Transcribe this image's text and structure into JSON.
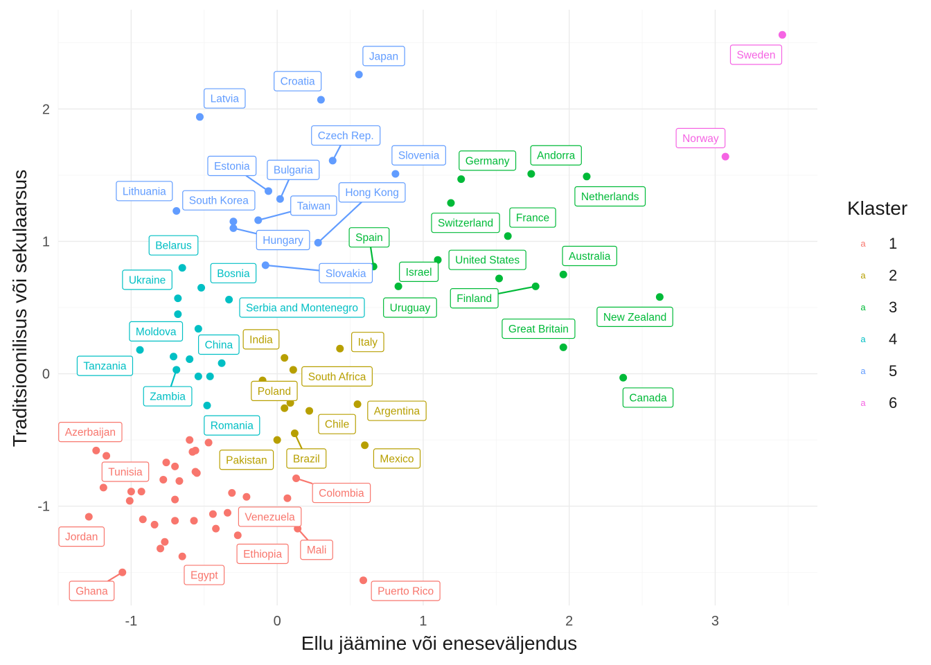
{
  "chart_data": {
    "type": "scatter",
    "xlabel": "Ellu jäämine või eneseväljendus",
    "ylabel": "Traditsioonilisus või sekulaarsus",
    "xlim": [
      -1.5,
      3.7
    ],
    "ylim": [
      -1.75,
      2.75
    ],
    "x_ticks": [
      -1,
      0,
      1,
      2,
      3
    ],
    "y_ticks": [
      -1,
      0,
      1,
      2
    ],
    "grid": true,
    "legend": {
      "title": "Klaster",
      "position": "right",
      "key_glyph": "a",
      "entries": [
        {
          "label": "1",
          "color": "#F8766D"
        },
        {
          "label": "2",
          "color": "#B79F00"
        },
        {
          "label": "3",
          "color": "#00BA38"
        },
        {
          "label": "4",
          "color": "#00BFC4"
        },
        {
          "label": "5",
          "color": "#619CFF"
        },
        {
          "label": "6",
          "color": "#F564E3"
        }
      ]
    },
    "points": [
      {
        "x": 0.56,
        "y": 2.26,
        "cluster": "5"
      },
      {
        "x": 0.3,
        "y": 2.07,
        "cluster": "5"
      },
      {
        "x": -0.53,
        "y": 1.94,
        "cluster": "5"
      },
      {
        "x": 0.38,
        "y": 1.61,
        "cluster": "5"
      },
      {
        "x": 0.81,
        "y": 1.51,
        "cluster": "5"
      },
      {
        "x": -0.06,
        "y": 1.38,
        "cluster": "5"
      },
      {
        "x": 0.02,
        "y": 1.32,
        "cluster": "5"
      },
      {
        "x": -0.69,
        "y": 1.23,
        "cluster": "5"
      },
      {
        "x": -0.3,
        "y": 1.15,
        "cluster": "5"
      },
      {
        "x": -0.3,
        "y": 1.1,
        "cluster": "5"
      },
      {
        "x": -0.13,
        "y": 1.16,
        "cluster": "5"
      },
      {
        "x": 0.28,
        "y": 0.99,
        "cluster": "5"
      },
      {
        "x": -0.08,
        "y": 0.82,
        "cluster": "5"
      },
      {
        "x": 1.26,
        "y": 1.47,
        "cluster": "3"
      },
      {
        "x": 1.74,
        "y": 1.51,
        "cluster": "3"
      },
      {
        "x": 2.12,
        "y": 1.49,
        "cluster": "3"
      },
      {
        "x": 1.19,
        "y": 1.29,
        "cluster": "3"
      },
      {
        "x": 1.58,
        "y": 1.04,
        "cluster": "3"
      },
      {
        "x": 0.66,
        "y": 0.81,
        "cluster": "3"
      },
      {
        "x": 1.1,
        "y": 0.86,
        "cluster": "3"
      },
      {
        "x": 1.52,
        "y": 0.72,
        "cluster": "3"
      },
      {
        "x": 1.96,
        "y": 0.75,
        "cluster": "3"
      },
      {
        "x": 0.83,
        "y": 0.66,
        "cluster": "3"
      },
      {
        "x": 1.77,
        "y": 0.66,
        "cluster": "3"
      },
      {
        "x": 2.62,
        "y": 0.58,
        "cluster": "3"
      },
      {
        "x": 1.96,
        "y": 0.2,
        "cluster": "3"
      },
      {
        "x": 2.37,
        "y": -0.03,
        "cluster": "3"
      },
      {
        "x": 3.46,
        "y": 2.56,
        "cluster": "6"
      },
      {
        "x": 3.07,
        "y": 1.64,
        "cluster": "6"
      },
      {
        "x": -0.65,
        "y": 0.8,
        "cluster": "4"
      },
      {
        "x": -0.52,
        "y": 0.65,
        "cluster": "4"
      },
      {
        "x": -0.68,
        "y": 0.57,
        "cluster": "4"
      },
      {
        "x": -0.33,
        "y": 0.56,
        "cluster": "4"
      },
      {
        "x": -0.68,
        "y": 0.45,
        "cluster": "4"
      },
      {
        "x": -0.54,
        "y": 0.34,
        "cluster": "4"
      },
      {
        "x": -0.94,
        "y": 0.18,
        "cluster": "4"
      },
      {
        "x": -0.71,
        "y": 0.13,
        "cluster": "4"
      },
      {
        "x": -0.6,
        "y": 0.11,
        "cluster": "4"
      },
      {
        "x": -0.38,
        "y": 0.08,
        "cluster": "4"
      },
      {
        "x": -0.69,
        "y": 0.03,
        "cluster": "4"
      },
      {
        "x": -0.54,
        "y": -0.02,
        "cluster": "4"
      },
      {
        "x": -0.46,
        "y": -0.02,
        "cluster": "4"
      },
      {
        "x": -0.48,
        "y": -0.24,
        "cluster": "4"
      },
      {
        "x": 0.43,
        "y": 0.19,
        "cluster": "2"
      },
      {
        "x": 0.05,
        "y": 0.12,
        "cluster": "2"
      },
      {
        "x": 0.11,
        "y": 0.03,
        "cluster": "2"
      },
      {
        "x": -0.1,
        "y": -0.05,
        "cluster": "2"
      },
      {
        "x": 0.09,
        "y": -0.22,
        "cluster": "2"
      },
      {
        "x": 0.05,
        "y": -0.26,
        "cluster": "2"
      },
      {
        "x": 0.22,
        "y": -0.28,
        "cluster": "2"
      },
      {
        "x": 0.55,
        "y": -0.23,
        "cluster": "2"
      },
      {
        "x": 0.12,
        "y": -0.45,
        "cluster": "2"
      },
      {
        "x": 0.0,
        "y": -0.5,
        "cluster": "2"
      },
      {
        "x": 0.6,
        "y": -0.54,
        "cluster": "2"
      },
      {
        "x": -1.24,
        "y": -0.58,
        "cluster": "1"
      },
      {
        "x": -1.17,
        "y": -0.62,
        "cluster": "1"
      },
      {
        "x": -0.6,
        "y": -0.5,
        "cluster": "1"
      },
      {
        "x": -0.47,
        "y": -0.52,
        "cluster": "1"
      },
      {
        "x": -0.58,
        "y": -0.59,
        "cluster": "1"
      },
      {
        "x": -0.56,
        "y": -0.58,
        "cluster": "1"
      },
      {
        "x": -0.76,
        "y": -0.67,
        "cluster": "1"
      },
      {
        "x": -0.7,
        "y": -0.7,
        "cluster": "1"
      },
      {
        "x": -0.91,
        "y": -0.72,
        "cluster": "1"
      },
      {
        "x": -0.56,
        "y": -0.74,
        "cluster": "1"
      },
      {
        "x": -0.55,
        "y": -0.75,
        "cluster": "1"
      },
      {
        "x": -0.78,
        "y": -0.8,
        "cluster": "1"
      },
      {
        "x": -0.67,
        "y": -0.81,
        "cluster": "1"
      },
      {
        "x": -1.19,
        "y": -0.86,
        "cluster": "1"
      },
      {
        "x": -1.0,
        "y": -0.89,
        "cluster": "1"
      },
      {
        "x": -0.93,
        "y": -0.89,
        "cluster": "1"
      },
      {
        "x": -0.31,
        "y": -0.9,
        "cluster": "1"
      },
      {
        "x": -0.21,
        "y": -0.93,
        "cluster": "1"
      },
      {
        "x": 0.07,
        "y": -0.94,
        "cluster": "1"
      },
      {
        "x": -1.01,
        "y": -0.96,
        "cluster": "1"
      },
      {
        "x": -0.7,
        "y": -0.95,
        "cluster": "1"
      },
      {
        "x": 0.13,
        "y": -0.79,
        "cluster": "1"
      },
      {
        "x": -0.44,
        "y": -1.06,
        "cluster": "1"
      },
      {
        "x": -0.34,
        "y": -1.05,
        "cluster": "1"
      },
      {
        "x": -1.29,
        "y": -1.08,
        "cluster": "1"
      },
      {
        "x": -0.92,
        "y": -1.1,
        "cluster": "1"
      },
      {
        "x": -0.84,
        "y": -1.14,
        "cluster": "1"
      },
      {
        "x": -0.7,
        "y": -1.11,
        "cluster": "1"
      },
      {
        "x": -0.57,
        "y": -1.11,
        "cluster": "1"
      },
      {
        "x": -0.42,
        "y": -1.17,
        "cluster": "1"
      },
      {
        "x": -0.27,
        "y": -1.22,
        "cluster": "1"
      },
      {
        "x": 0.14,
        "y": -1.17,
        "cluster": "1"
      },
      {
        "x": -0.77,
        "y": -1.27,
        "cluster": "1"
      },
      {
        "x": -0.8,
        "y": -1.32,
        "cluster": "1"
      },
      {
        "x": -0.65,
        "y": -1.38,
        "cluster": "1"
      },
      {
        "x": -1.06,
        "y": -1.5,
        "cluster": "1"
      },
      {
        "x": 0.59,
        "y": -1.56,
        "cluster": "1"
      }
    ],
    "labels": [
      {
        "text": "Japan",
        "x": 0.73,
        "y": 2.4,
        "cluster": "5"
      },
      {
        "text": "Croatia",
        "x": 0.14,
        "y": 2.21,
        "cluster": "5"
      },
      {
        "text": "Latvia",
        "x": -0.36,
        "y": 2.08,
        "cluster": "5"
      },
      {
        "text": "Czech Rep.",
        "x": 0.47,
        "y": 1.8,
        "cluster": "5",
        "px": 0.38,
        "py": 1.61
      },
      {
        "text": "Slovenia",
        "x": 0.97,
        "y": 1.65,
        "cluster": "5"
      },
      {
        "text": "Estonia",
        "x": -0.31,
        "y": 1.57,
        "cluster": "5",
        "px": -0.06,
        "py": 1.38
      },
      {
        "text": "Bulgaria",
        "x": 0.11,
        "y": 1.54,
        "cluster": "5",
        "px": 0.02,
        "py": 1.32
      },
      {
        "text": "Lithuania",
        "x": -0.91,
        "y": 1.38,
        "cluster": "5"
      },
      {
        "text": "South Korea",
        "x": -0.4,
        "y": 1.31,
        "cluster": "5"
      },
      {
        "text": "Hong Kong",
        "x": 0.65,
        "y": 1.37,
        "cluster": "5",
        "px": 0.28,
        "py": 0.99
      },
      {
        "text": "Taiwan",
        "x": 0.25,
        "y": 1.27,
        "cluster": "5",
        "px": -0.13,
        "py": 1.16
      },
      {
        "text": "Hungary",
        "x": 0.04,
        "y": 1.01,
        "cluster": "5",
        "px": -0.3,
        "py": 1.1
      },
      {
        "text": "Slovakia",
        "x": 0.47,
        "y": 0.76,
        "cluster": "5",
        "px": -0.08,
        "py": 0.82
      },
      {
        "text": "Germany",
        "x": 1.44,
        "y": 1.61,
        "cluster": "3"
      },
      {
        "text": "Andorra",
        "x": 1.91,
        "y": 1.65,
        "cluster": "3"
      },
      {
        "text": "Netherlands",
        "x": 2.28,
        "y": 1.34,
        "cluster": "3"
      },
      {
        "text": "Switzerland",
        "x": 1.29,
        "y": 1.14,
        "cluster": "3"
      },
      {
        "text": "France",
        "x": 1.75,
        "y": 1.18,
        "cluster": "3"
      },
      {
        "text": "Spain",
        "x": 0.63,
        "y": 1.03,
        "cluster": "3",
        "px": 0.66,
        "py": 0.81
      },
      {
        "text": "Australia",
        "x": 2.14,
        "y": 0.89,
        "cluster": "3"
      },
      {
        "text": "United States",
        "x": 1.44,
        "y": 0.86,
        "cluster": "3"
      },
      {
        "text": "Israel",
        "x": 0.97,
        "y": 0.77,
        "cluster": "3"
      },
      {
        "text": "Finland",
        "x": 1.35,
        "y": 0.57,
        "cluster": "3",
        "px": 1.77,
        "py": 0.66
      },
      {
        "text": "Uruguay",
        "x": 0.91,
        "y": 0.5,
        "cluster": "3"
      },
      {
        "text": "Great Britain",
        "x": 1.79,
        "y": 0.34,
        "cluster": "3"
      },
      {
        "text": "New Zealand",
        "x": 2.45,
        "y": 0.43,
        "cluster": "3"
      },
      {
        "text": "Canada",
        "x": 2.54,
        "y": -0.18,
        "cluster": "3"
      },
      {
        "text": "Sweden",
        "x": 3.28,
        "y": 2.41,
        "cluster": "6"
      },
      {
        "text": "Norway",
        "x": 2.9,
        "y": 1.78,
        "cluster": "6"
      },
      {
        "text": "Belarus",
        "x": -0.71,
        "y": 0.97,
        "cluster": "4"
      },
      {
        "text": "Ukraine",
        "x": -0.89,
        "y": 0.71,
        "cluster": "4"
      },
      {
        "text": "Bosnia",
        "x": -0.3,
        "y": 0.76,
        "cluster": "4"
      },
      {
        "text": "Serbia and Montenegro",
        "x": 0.17,
        "y": 0.5,
        "cluster": "4"
      },
      {
        "text": "Moldova",
        "x": -0.83,
        "y": 0.32,
        "cluster": "4"
      },
      {
        "text": "China",
        "x": -0.4,
        "y": 0.22,
        "cluster": "4"
      },
      {
        "text": "Tanzania",
        "x": -1.18,
        "y": 0.06,
        "cluster": "4"
      },
      {
        "text": "Zambia",
        "x": -0.75,
        "y": -0.17,
        "cluster": "4",
        "px": -0.69,
        "py": 0.03
      },
      {
        "text": "Romania",
        "x": -0.31,
        "y": -0.39,
        "cluster": "4"
      },
      {
        "text": "India",
        "x": -0.11,
        "y": 0.26,
        "cluster": "2"
      },
      {
        "text": "Italy",
        "x": 0.62,
        "y": 0.24,
        "cluster": "2"
      },
      {
        "text": "South Africa",
        "x": 0.41,
        "y": -0.02,
        "cluster": "2"
      },
      {
        "text": "Poland",
        "x": -0.02,
        "y": -0.13,
        "cluster": "2"
      },
      {
        "text": "Argentina",
        "x": 0.82,
        "y": -0.28,
        "cluster": "2"
      },
      {
        "text": "Chile",
        "x": 0.41,
        "y": -0.38,
        "cluster": "2"
      },
      {
        "text": "Pakistan",
        "x": -0.21,
        "y": -0.65,
        "cluster": "2"
      },
      {
        "text": "Brazil",
        "x": 0.2,
        "y": -0.64,
        "cluster": "2",
        "px": 0.12,
        "py": -0.45
      },
      {
        "text": "Mexico",
        "x": 0.82,
        "y": -0.64,
        "cluster": "2"
      },
      {
        "text": "Azerbaijan",
        "x": -1.28,
        "y": -0.44,
        "cluster": "1"
      },
      {
        "text": "Tunisia",
        "x": -1.04,
        "y": -0.74,
        "cluster": "1"
      },
      {
        "text": "Colombia",
        "x": 0.44,
        "y": -0.9,
        "cluster": "1",
        "px": 0.13,
        "py": -0.79
      },
      {
        "text": "Venezuela",
        "x": -0.05,
        "y": -1.08,
        "cluster": "1"
      },
      {
        "text": "Jordan",
        "x": -1.34,
        "y": -1.23,
        "cluster": "1"
      },
      {
        "text": "Ethiopia",
        "x": -0.1,
        "y": -1.36,
        "cluster": "1"
      },
      {
        "text": "Mali",
        "x": 0.27,
        "y": -1.33,
        "cluster": "1",
        "px": 0.14,
        "py": -1.17
      },
      {
        "text": "Egypt",
        "x": -0.5,
        "y": -1.52,
        "cluster": "1"
      },
      {
        "text": "Ghana",
        "x": -1.27,
        "y": -1.64,
        "cluster": "1",
        "px": -1.06,
        "py": -1.5
      },
      {
        "text": "Puerto Rico",
        "x": 0.88,
        "y": -1.64,
        "cluster": "1"
      }
    ]
  }
}
